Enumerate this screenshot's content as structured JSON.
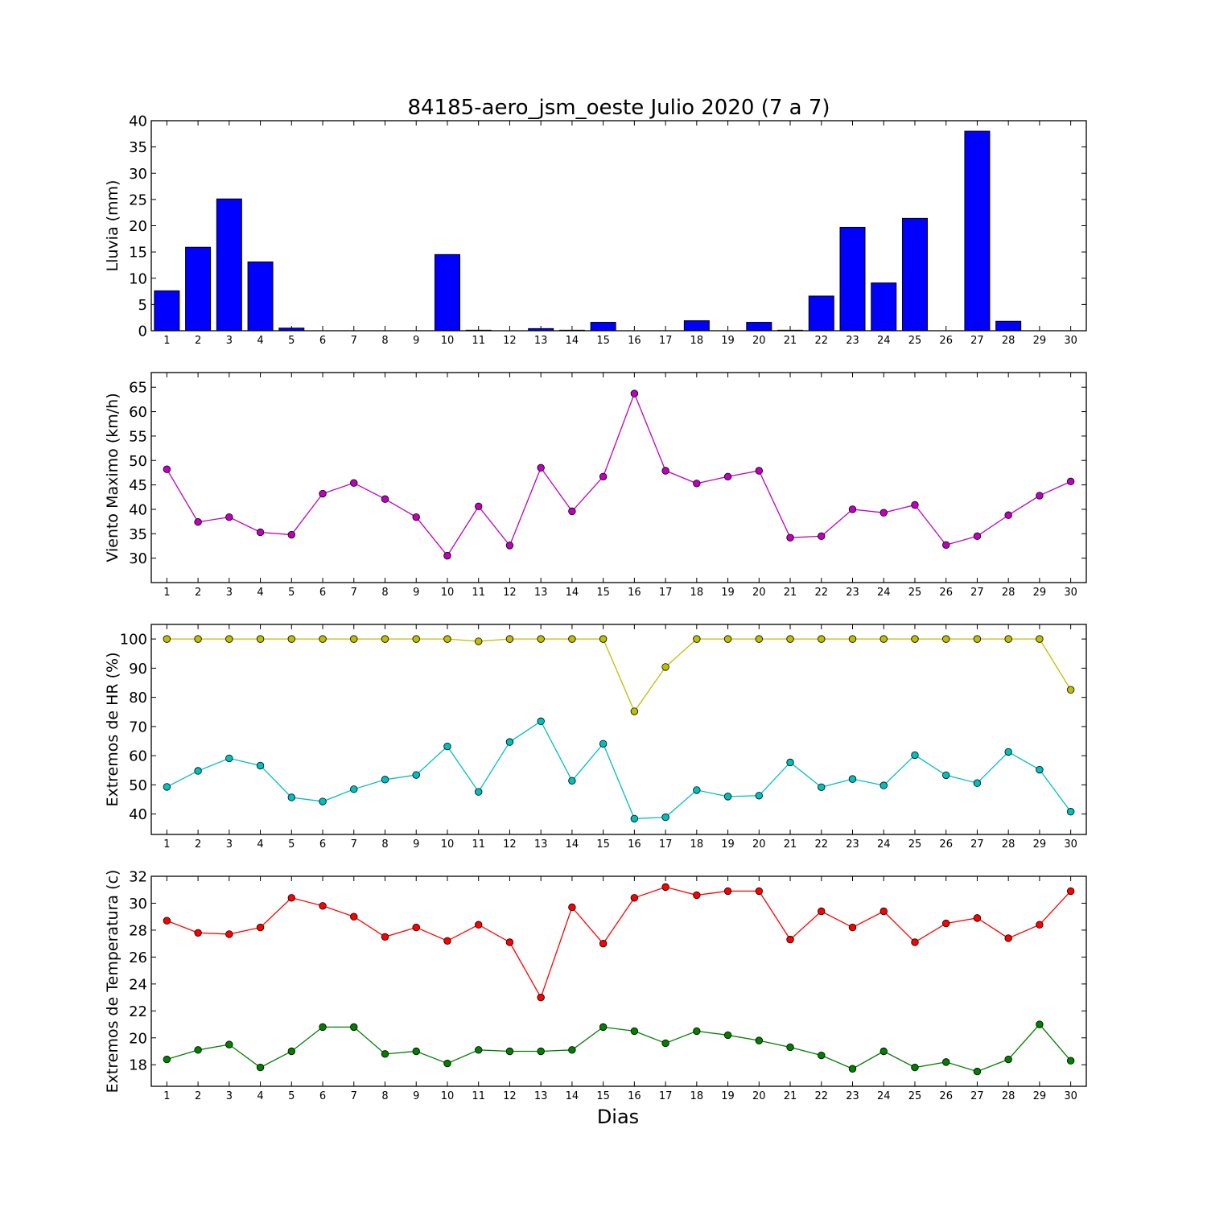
{
  "chart_data": {
    "title": "84185-aero_jsm_oeste Julio 2020  (7 a 7)",
    "xlabel": "Dias",
    "days": [
      1,
      2,
      3,
      4,
      5,
      6,
      7,
      8,
      9,
      10,
      11,
      12,
      13,
      14,
      15,
      16,
      17,
      18,
      19,
      20,
      21,
      22,
      23,
      24,
      25,
      26,
      27,
      28,
      29,
      30
    ],
    "panels": [
      {
        "id": "rain",
        "type": "bar",
        "ylabel": "Lluvia (mm)",
        "ylim": [
          0,
          40
        ],
        "yticks": [
          0,
          5,
          10,
          15,
          20,
          25,
          30,
          35,
          40
        ],
        "series": [
          {
            "color": "#0000ff",
            "values": [
              7.6,
              15.9,
              25.1,
              13.1,
              0.5,
              0,
              0,
              0,
              0,
              14.5,
              0.1,
              0,
              0.4,
              0.1,
              1.6,
              0,
              0,
              1.9,
              0,
              1.6,
              0.1,
              6.6,
              19.7,
              9.1,
              21.4,
              0,
              38.0,
              1.8,
              0,
              0
            ]
          }
        ]
      },
      {
        "id": "wind",
        "type": "line",
        "ylabel": "Viento Maximo (km/h)",
        "ylim": [
          25,
          68
        ],
        "yticks": [
          30,
          35,
          40,
          45,
          50,
          55,
          60,
          65
        ],
        "series": [
          {
            "color": "#bf00bf",
            "values": [
              48.2,
              37.4,
              38.4,
              35.3,
              34.8,
              43.2,
              45.4,
              42.1,
              38.4,
              30.5,
              40.6,
              32.6,
              48.5,
              39.6,
              46.7,
              63.7,
              47.9,
              45.3,
              46.7,
              47.9,
              34.2,
              34.5,
              40.0,
              39.3,
              40.9,
              32.7,
              34.5,
              38.8,
              42.8,
              45.7
            ]
          }
        ]
      },
      {
        "id": "hr",
        "type": "line",
        "ylabel": "Extremos de HR (%)",
        "ylim": [
          33,
          105
        ],
        "yticks": [
          40,
          50,
          60,
          70,
          80,
          90,
          100
        ],
        "series": [
          {
            "color": "#bfbf00",
            "values": [
              100,
              100,
              100,
              100,
              100,
              100,
              100,
              100,
              100,
              100,
              99.2,
              100,
              100,
              100,
              100,
              75.2,
              90.4,
              100,
              100,
              100,
              100,
              100,
              100,
              100,
              100,
              100,
              100,
              100,
              100,
              82.6
            ]
          },
          {
            "color": "#00bfbf",
            "values": [
              49.3,
              54.8,
              59.1,
              56.6,
              45.7,
              44.3,
              48.5,
              51.8,
              53.4,
              63.2,
              47.6,
              64.7,
              71.8,
              51.4,
              64.1,
              38.4,
              38.9,
              48.2,
              46.0,
              46.3,
              57.7,
              49.2,
              52.0,
              49.8,
              60.2,
              53.3,
              50.6,
              61.3,
              55.2,
              40.8
            ]
          }
        ]
      },
      {
        "id": "temp",
        "type": "line",
        "ylabel": "Extremos de Temperatura (c)",
        "ylim": [
          16.4,
          32
        ],
        "yticks": [
          18,
          20,
          22,
          24,
          26,
          28,
          30,
          32
        ],
        "series": [
          {
            "color": "#ff0000",
            "values": [
              28.7,
              27.8,
              27.7,
              28.2,
              30.4,
              29.8,
              29.0,
              27.5,
              28.2,
              27.2,
              28.4,
              27.1,
              23.0,
              29.7,
              27.0,
              30.4,
              31.2,
              30.6,
              30.9,
              30.9,
              27.3,
              29.4,
              28.2,
              29.4,
              27.1,
              28.5,
              28.9,
              27.4,
              28.4,
              30.9
            ]
          },
          {
            "color": "#007f00",
            "values": [
              18.4,
              19.1,
              19.5,
              17.8,
              19.0,
              20.8,
              20.8,
              18.8,
              19.0,
              18.1,
              19.1,
              19.0,
              19.0,
              19.1,
              20.8,
              20.5,
              19.6,
              20.5,
              20.2,
              19.8,
              19.3,
              18.7,
              17.7,
              19.0,
              17.8,
              18.2,
              17.5,
              18.4,
              21.0,
              18.3
            ]
          }
        ]
      }
    ]
  }
}
